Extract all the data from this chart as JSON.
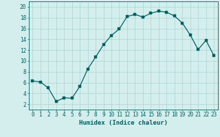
{
  "x": [
    0,
    1,
    2,
    3,
    4,
    5,
    6,
    7,
    8,
    9,
    10,
    11,
    12,
    13,
    14,
    15,
    16,
    17,
    18,
    19,
    20,
    21,
    22,
    23
  ],
  "y": [
    6.3,
    6.1,
    5.0,
    2.5,
    3.2,
    3.1,
    5.3,
    8.5,
    10.7,
    13.0,
    14.7,
    15.9,
    18.2,
    18.6,
    18.1,
    18.8,
    19.2,
    19.0,
    18.3,
    17.0,
    14.8,
    12.1,
    13.8,
    11.0
  ],
  "xlabel": "Humidex (Indice chaleur)",
  "xlim": [
    -0.5,
    23.5
  ],
  "ylim": [
    1,
    21
  ],
  "yticks": [
    2,
    4,
    6,
    8,
    10,
    12,
    14,
    16,
    18,
    20
  ],
  "xticks": [
    0,
    1,
    2,
    3,
    4,
    5,
    6,
    7,
    8,
    9,
    10,
    11,
    12,
    13,
    14,
    15,
    16,
    17,
    18,
    19,
    20,
    21,
    22,
    23
  ],
  "line_color": "#005f5f",
  "marker_color": "#005f5f",
  "bg_color": "#d4eeed",
  "grid_color": "#9ecece",
  "axis_color": "#005f5f",
  "tick_label_color": "#005f5f",
  "xlabel_color": "#005f5f",
  "xlabel_fontsize": 6.5,
  "tick_fontsize": 5.5,
  "line_width": 0.9,
  "marker_size": 2.2
}
